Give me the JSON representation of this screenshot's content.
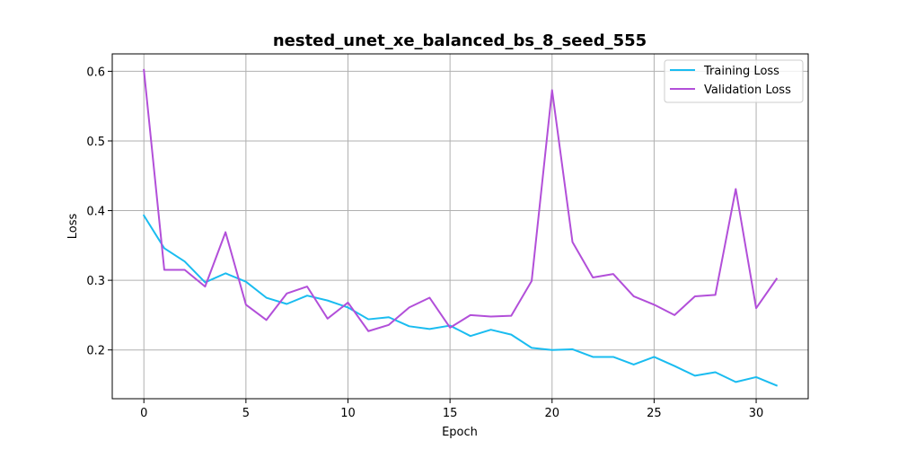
{
  "chart_data": {
    "type": "line",
    "title": "nested_unet_xe_balanced_bs_8_seed_555",
    "xlabel": "Epoch",
    "ylabel": "Loss",
    "xlim": [
      -1.55,
      32.55
    ],
    "ylim": [
      0.13,
      0.625
    ],
    "xticks": [
      0,
      5,
      10,
      15,
      20,
      25,
      30
    ],
    "yticks": [
      0.2,
      0.3,
      0.4,
      0.5,
      0.6
    ],
    "grid": true,
    "legend_position": "top-right",
    "x": [
      0,
      1,
      2,
      3,
      4,
      5,
      6,
      7,
      8,
      9,
      10,
      11,
      12,
      13,
      14,
      15,
      16,
      17,
      18,
      19,
      20,
      21,
      22,
      23,
      24,
      25,
      26,
      27,
      28,
      29,
      30,
      31
    ],
    "series": [
      {
        "name": "Training Loss",
        "color": "#1abcf0",
        "values": [
          0.393,
          0.346,
          0.327,
          0.297,
          0.31,
          0.298,
          0.275,
          0.266,
          0.278,
          0.271,
          0.261,
          0.244,
          0.247,
          0.234,
          0.23,
          0.235,
          0.22,
          0.229,
          0.222,
          0.203,
          0.2,
          0.201,
          0.19,
          0.19,
          0.179,
          0.19,
          0.177,
          0.163,
          0.168,
          0.154,
          0.161,
          0.149
        ]
      },
      {
        "name": "Validation Loss",
        "color": "#b24fd9",
        "values": [
          0.602,
          0.315,
          0.315,
          0.291,
          0.369,
          0.265,
          0.243,
          0.281,
          0.291,
          0.245,
          0.268,
          0.227,
          0.236,
          0.261,
          0.275,
          0.232,
          0.25,
          0.248,
          0.249,
          0.299,
          0.573,
          0.355,
          0.304,
          0.309,
          0.277,
          0.265,
          0.25,
          0.277,
          0.279,
          0.431,
          0.26,
          0.302
        ]
      }
    ]
  }
}
